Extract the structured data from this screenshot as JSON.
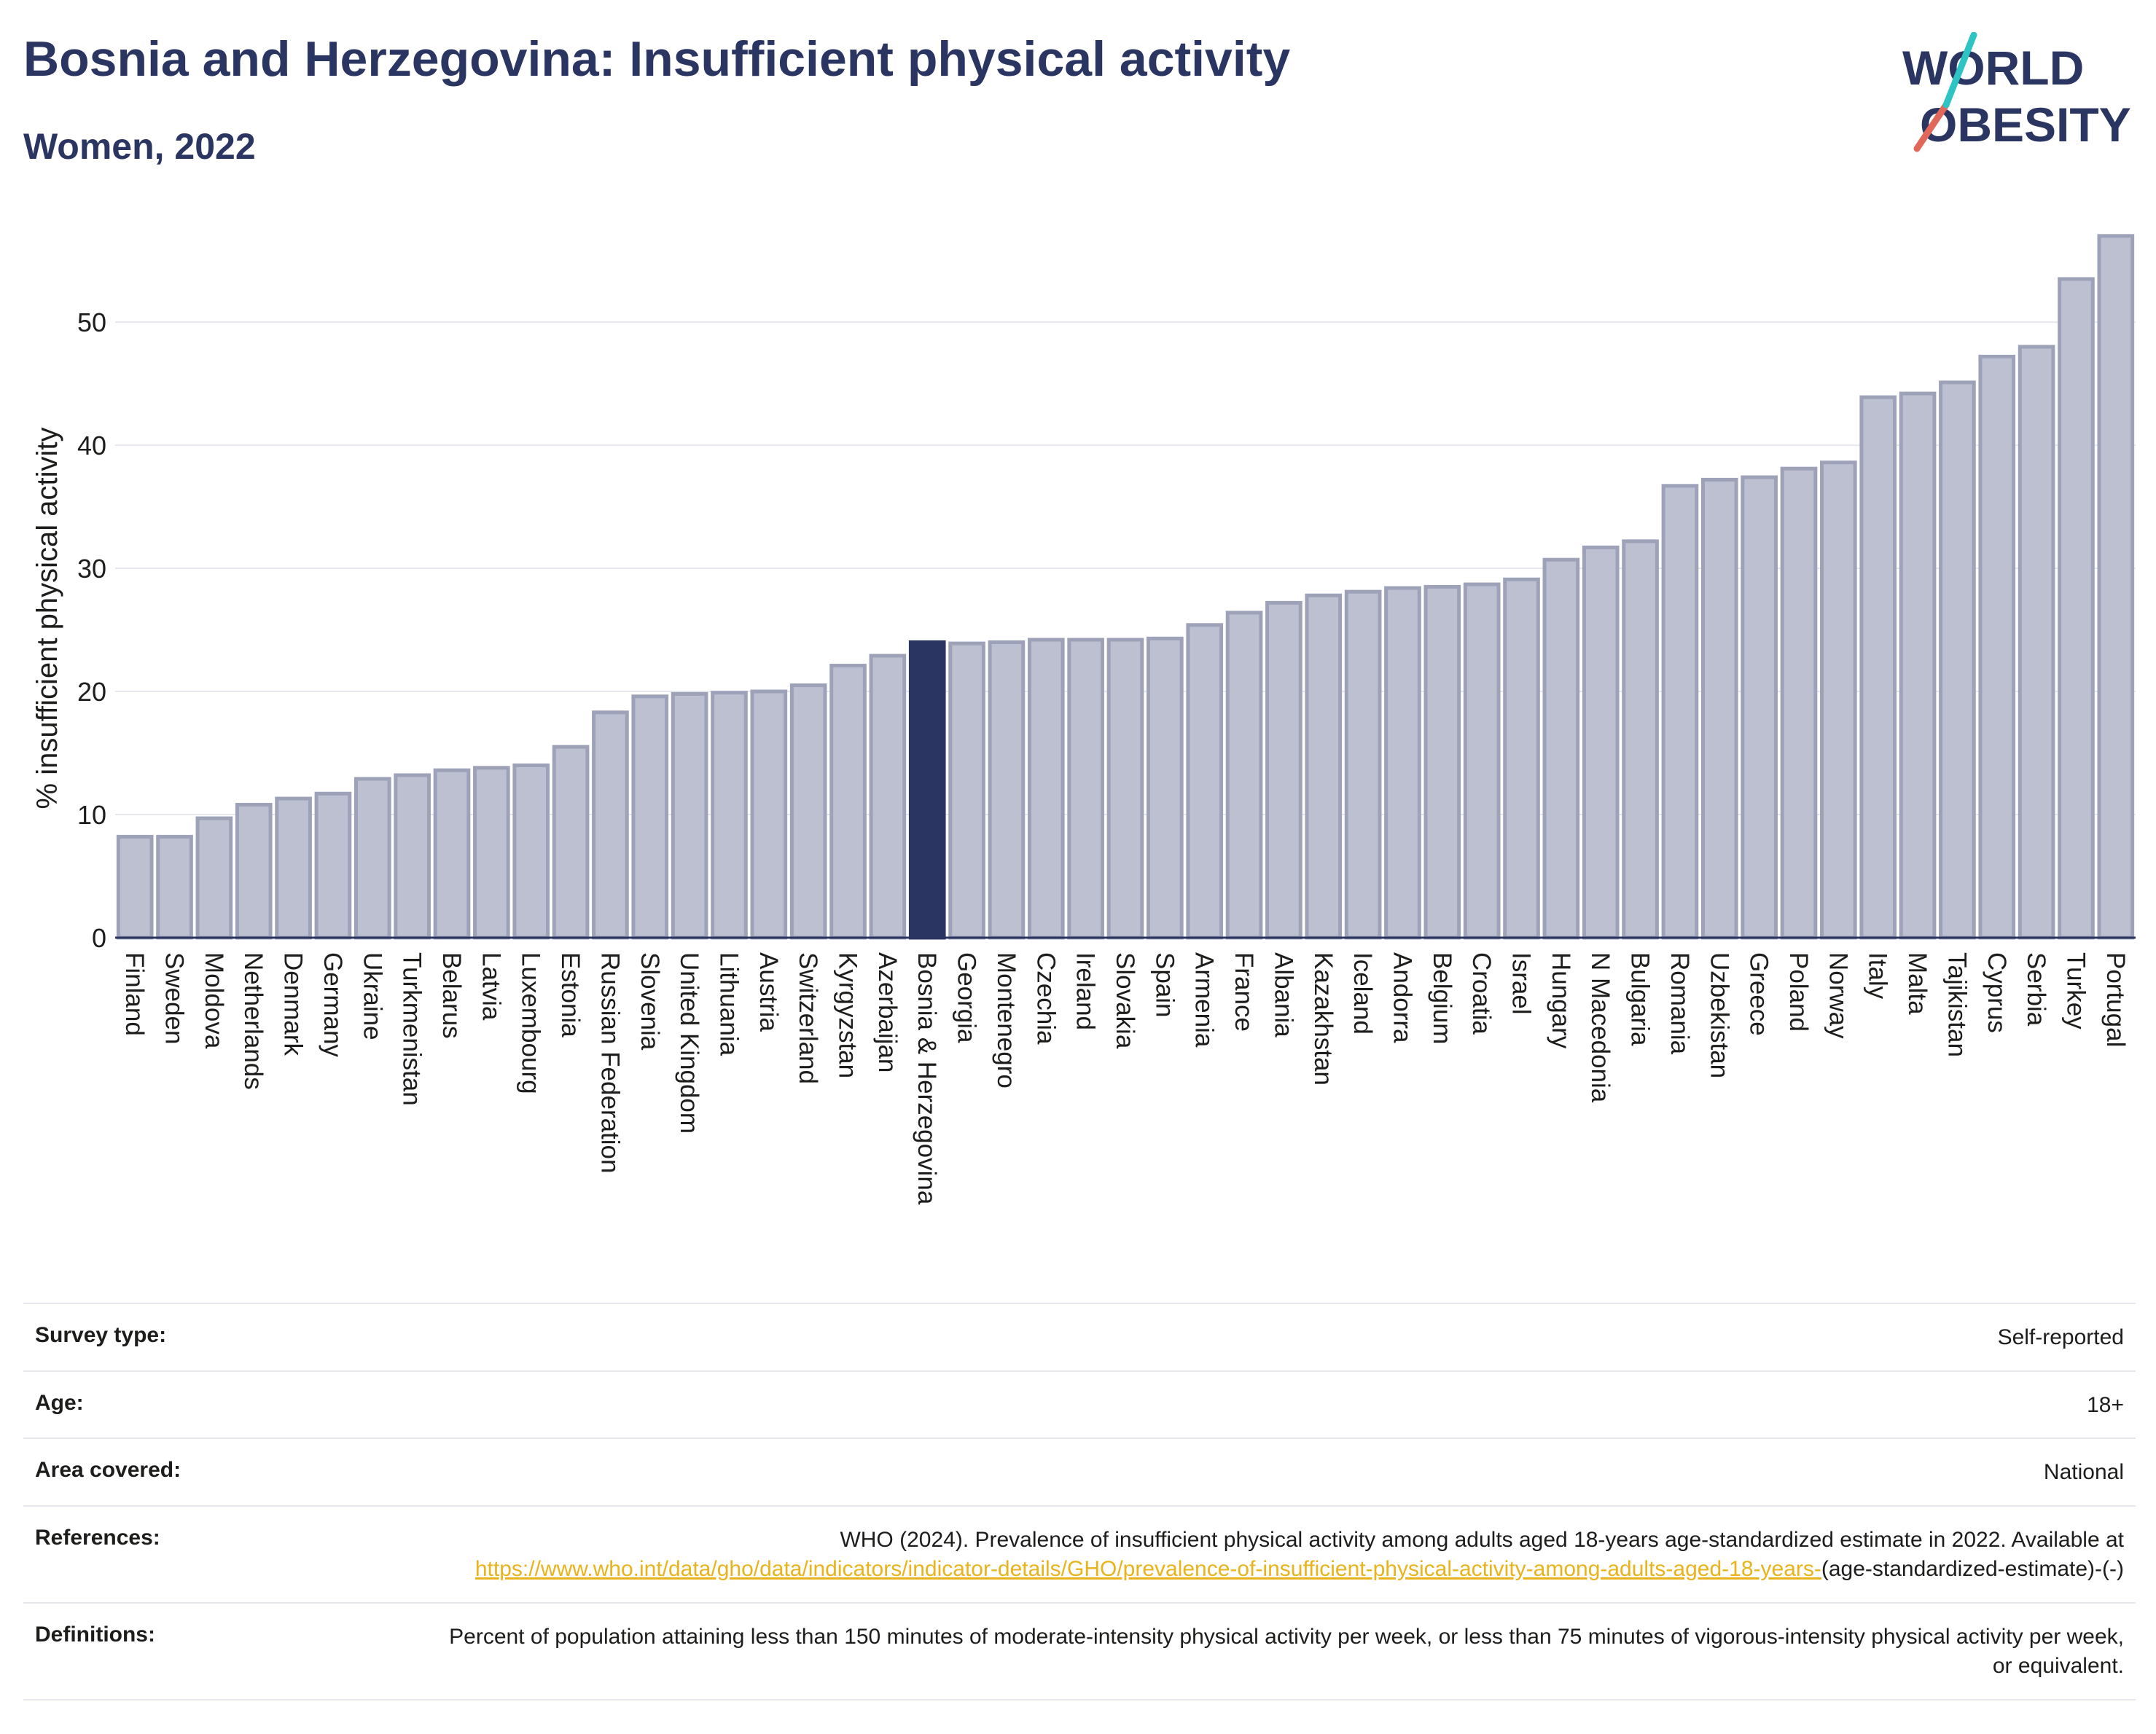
{
  "header": {
    "title": "Bosnia and Herzegovina: Insufficient physical activity",
    "subtitle": "Women, 2022"
  },
  "logo": {
    "line1": "WORLD",
    "line2": "OBESITY"
  },
  "colors": {
    "highlight": "#2b3562",
    "bar": "#bcc0d0",
    "bar_border": "#9da2b9",
    "title": "#2b3562",
    "link": "#e8b31b"
  },
  "chart_data": {
    "type": "bar",
    "ylabel": "% insufficient physical activity",
    "ylim": [
      0,
      59
    ],
    "yticks": [
      0,
      10,
      20,
      30,
      40,
      50
    ],
    "grid": true,
    "highlight": "Bosnia & Herzegovina",
    "categories": [
      "Finland",
      "Sweden",
      "Moldova",
      "Netherlands",
      "Denmark",
      "Germany",
      "Ukraine",
      "Turkmenistan",
      "Belarus",
      "Latvia",
      "Luxembourg",
      "Estonia",
      "Russian Federation",
      "Slovenia",
      "United Kingdom",
      "Lithuania",
      "Austria",
      "Switzerland",
      "Kyrgyzstan",
      "Azerbaijan",
      "Bosnia & Herzegovina",
      "Georgia",
      "Montenegro",
      "Czechia",
      "Ireland",
      "Slovakia",
      "Spain",
      "Armenia",
      "France",
      "Albania",
      "Kazakhstan",
      "Iceland",
      "Andorra",
      "Belgium",
      "Croatia",
      "Israel",
      "Hungary",
      "N Macedonia",
      "Bulgaria",
      "Romania",
      "Uzbekistan",
      "Greece",
      "Poland",
      "Norway",
      "Italy",
      "Malta",
      "Tajikistan",
      "Cyprus",
      "Serbia",
      "Turkey",
      "Portugal"
    ],
    "values": [
      8.2,
      8.2,
      9.7,
      10.8,
      11.3,
      11.7,
      12.9,
      13.2,
      13.6,
      13.8,
      14.0,
      15.5,
      18.3,
      19.6,
      19.8,
      19.9,
      20.0,
      20.5,
      22.1,
      22.9,
      24.0,
      23.9,
      24.0,
      24.2,
      24.2,
      24.2,
      24.3,
      25.4,
      26.4,
      27.2,
      27.8,
      28.1,
      28.4,
      28.5,
      28.7,
      29.1,
      30.7,
      31.7,
      32.2,
      36.7,
      37.2,
      37.4,
      38.1,
      38.6,
      43.9,
      44.2,
      45.1,
      47.2,
      48.0,
      53.5,
      57.0
    ]
  },
  "info": {
    "survey_type_label": "Survey type:",
    "survey_type_value": "Self-reported",
    "age_label": "Age:",
    "age_value": "18+",
    "area_label": "Area covered:",
    "area_value": "National",
    "references_label": "References:",
    "references_text": "WHO (2024). Prevalence of insufficient physical activity among adults aged 18-years age-standardized estimate in 2022. Available at",
    "references_link": "https://www.who.int/data/gho/data/indicators/indicator-details/GHO/prevalence-of-insufficient-physical-activity-among-adults-aged-18-years-",
    "references_suffix": "(age-standardized-estimate)-(-)",
    "definitions_label": "Definitions:",
    "definitions_text": "Percent of population attaining less than 150 minutes of moderate-intensity physical activity per week, or less than 75 minutes of vigorous-intensity physical activity per week, or equivalent."
  }
}
